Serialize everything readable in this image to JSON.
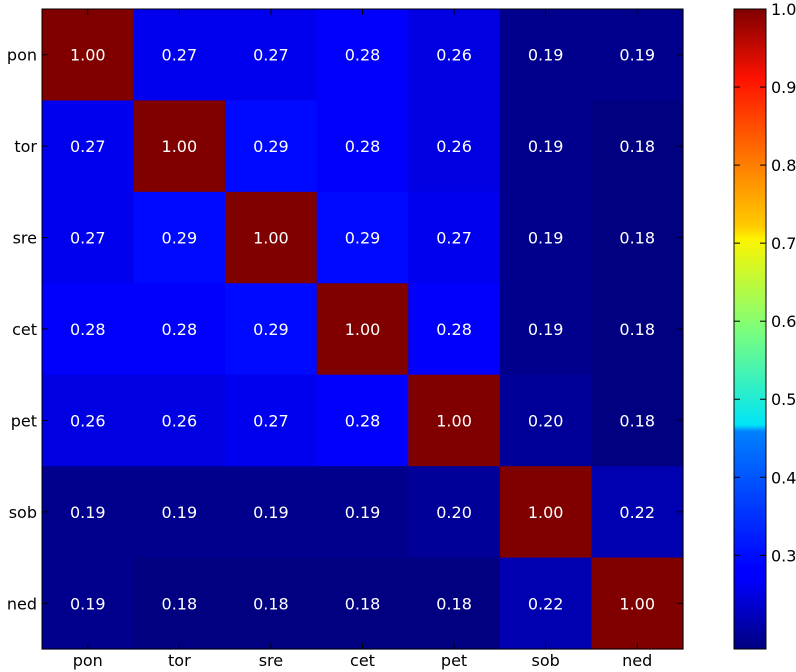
{
  "chart_data": {
    "type": "heatmap",
    "row_labels": [
      "pon",
      "tor",
      "sre",
      "cet",
      "pet",
      "sob",
      "ned"
    ],
    "col_labels": [
      "pon",
      "tor",
      "sre",
      "cet",
      "pet",
      "sob",
      "ned"
    ],
    "matrix": [
      [
        1.0,
        0.27,
        0.27,
        0.28,
        0.26,
        0.19,
        0.19
      ],
      [
        0.27,
        1.0,
        0.29,
        0.28,
        0.26,
        0.19,
        0.18
      ],
      [
        0.27,
        0.29,
        1.0,
        0.29,
        0.27,
        0.19,
        0.18
      ],
      [
        0.28,
        0.28,
        0.29,
        1.0,
        0.28,
        0.19,
        0.18
      ],
      [
        0.26,
        0.26,
        0.27,
        0.28,
        1.0,
        0.2,
        0.18
      ],
      [
        0.19,
        0.19,
        0.19,
        0.19,
        0.2,
        1.0,
        0.22
      ],
      [
        0.19,
        0.18,
        0.18,
        0.18,
        0.18,
        0.22,
        1.0
      ]
    ],
    "value_format": "0.00",
    "colormap": "jet",
    "colorbar": {
      "range": [
        0.18,
        1.0
      ],
      "ticks": [
        "0.3",
        "0.4",
        "0.5",
        "0.6",
        "0.7",
        "0.8",
        "0.9",
        "1.0"
      ]
    },
    "xlabel": "",
    "ylabel": "",
    "title": ""
  }
}
